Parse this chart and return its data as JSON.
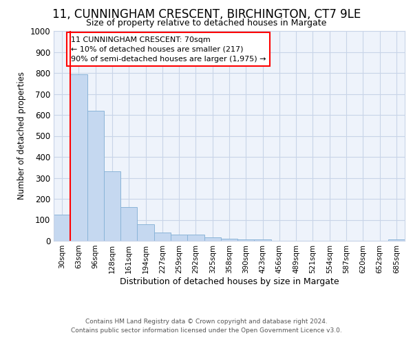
{
  "title1": "11, CUNNINGHAM CRESCENT, BIRCHINGTON, CT7 9LE",
  "title2": "Size of property relative to detached houses in Margate",
  "xlabel": "Distribution of detached houses by size in Margate",
  "ylabel": "Number of detached properties",
  "bar_labels": [
    "30sqm",
    "63sqm",
    "96sqm",
    "128sqm",
    "161sqm",
    "194sqm",
    "227sqm",
    "259sqm",
    "292sqm",
    "325sqm",
    "358sqm",
    "390sqm",
    "423sqm",
    "456sqm",
    "489sqm",
    "521sqm",
    "554sqm",
    "587sqm",
    "620sqm",
    "652sqm",
    "685sqm"
  ],
  "bar_values": [
    125,
    795,
    620,
    330,
    162,
    78,
    40,
    28,
    28,
    15,
    10,
    5,
    5,
    0,
    0,
    0,
    0,
    0,
    0,
    0,
    8
  ],
  "bar_color": "#c5d8f0",
  "bar_edge_color": "#8ab4d8",
  "red_line_x": 0.5,
  "annotation_text": "11 CUNNINGHAM CRESCENT: 70sqm\n← 10% of detached houses are smaller (217)\n90% of semi-detached houses are larger (1,975) →",
  "annotation_box_color": "white",
  "annotation_box_edge_color": "red",
  "ylim": [
    0,
    1000
  ],
  "yticks": [
    0,
    100,
    200,
    300,
    400,
    500,
    600,
    700,
    800,
    900,
    1000
  ],
  "footer1": "Contains HM Land Registry data © Crown copyright and database right 2024.",
  "footer2": "Contains public sector information licensed under the Open Government Licence v3.0.",
  "bg_color": "#ffffff",
  "plot_bg_color": "#eef3fb",
  "grid_color": "#c8d4e8"
}
